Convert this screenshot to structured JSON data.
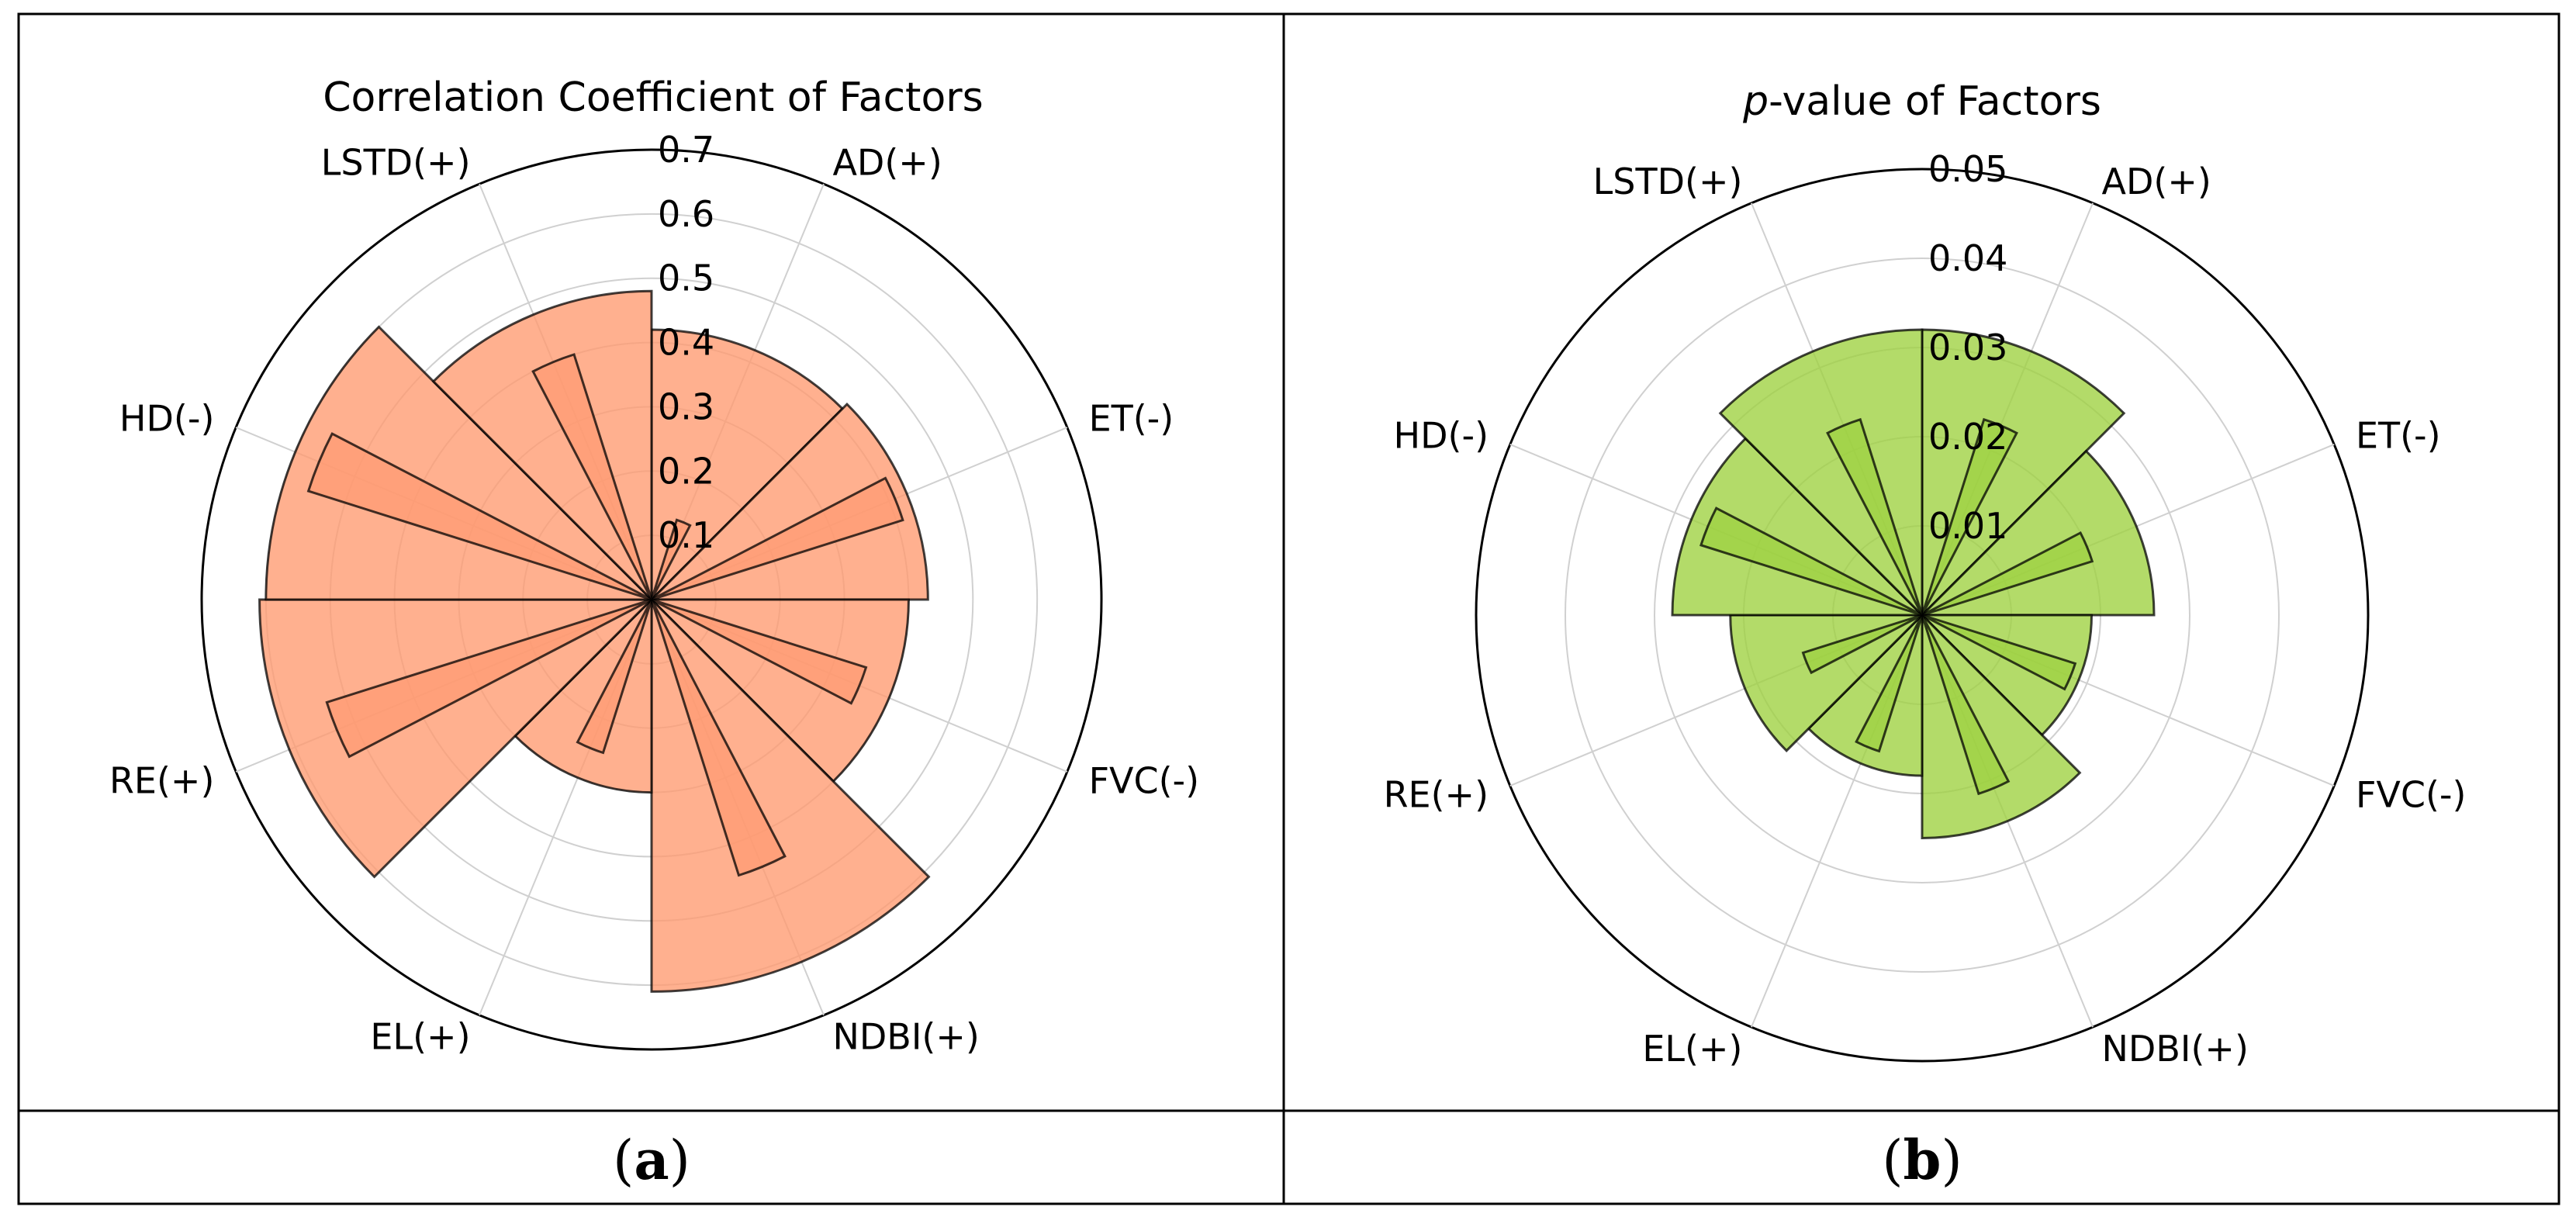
{
  "panels": [
    {
      "label_open": "(",
      "label_letter": "a",
      "label_close": ")"
    },
    {
      "label_open": "(",
      "label_letter": "b",
      "label_close": ")"
    }
  ],
  "chart_data": [
    {
      "type": "polar-bar",
      "title": "Correlation Coefficient of Factors",
      "title_italic": "",
      "categories": [
        "AD(+)",
        "ET(-)",
        "FVC(-)",
        "NDBI(+)",
        "EL(+)",
        "RE(+)",
        "HD(-)",
        "LSTD(+)"
      ],
      "series": [
        {
          "name": "wide",
          "values": [
            0.42,
            0.43,
            0.4,
            0.61,
            0.3,
            0.61,
            0.6,
            0.48
          ]
        },
        {
          "name": "narrow",
          "values": [
            0.13,
            0.41,
            0.35,
            0.45,
            0.25,
            0.53,
            0.56,
            0.4
          ]
        }
      ],
      "rlim": [
        0,
        0.7
      ],
      "rticks": [
        "0.1",
        "0.2",
        "0.3",
        "0.4",
        "0.5",
        "0.6",
        "0.7"
      ],
      "color": "#ff9a70",
      "edge_color": "#000000"
    },
    {
      "type": "polar-bar",
      "title": "-value of Factors",
      "title_italic": "p",
      "categories": [
        "AD(+)",
        "ET(-)",
        "FVC(-)",
        "NDBI(+)",
        "EL(+)",
        "RE(+)",
        "HD(-)",
        "LSTD(+)"
      ],
      "series": [
        {
          "name": "wide",
          "values": [
            0.032,
            0.026,
            0.019,
            0.025,
            0.018,
            0.0215,
            0.028,
            0.032
          ]
        },
        {
          "name": "narrow",
          "values": [
            0.023,
            0.02,
            0.018,
            0.021,
            0.016,
            0.014,
            0.026,
            0.023
          ]
        }
      ],
      "rlim": [
        0,
        0.05
      ],
      "rticks": [
        "0.01",
        "0.02",
        "0.03",
        "0.04",
        "0.05"
      ],
      "color": "#9dd13f",
      "edge_color": "#000000"
    }
  ]
}
